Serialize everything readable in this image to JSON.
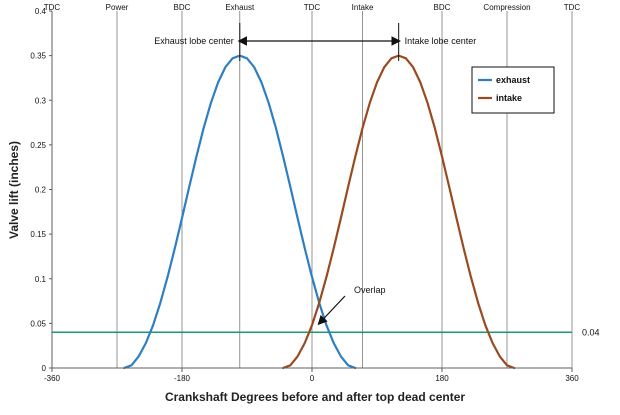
{
  "chart_data": {
    "type": "line",
    "xlabel": "Crankshaft Degrees before and after top dead center",
    "ylabel": "Valve lift (inches)",
    "xlim": [
      -360,
      360
    ],
    "ylim": [
      0,
      0.4
    ],
    "x_ticks": [
      -360,
      -180,
      0,
      180,
      360
    ],
    "x_tick_labels": [
      "-360",
      "-180",
      "0",
      "180",
      "360"
    ],
    "y_ticks": [
      0,
      0.05,
      0.1,
      0.15,
      0.2,
      0.25,
      0.3,
      0.35,
      0.4
    ],
    "y_tick_labels": [
      "0",
      "0.05",
      "0.1",
      "0.15",
      "0.2",
      "0.25",
      "0.3",
      "0.35",
      "0.4"
    ],
    "grid": "vertical",
    "top_phase_labels": [
      {
        "x": -360,
        "text": "TDC"
      },
      {
        "x": -270,
        "text": "Power"
      },
      {
        "x": -180,
        "text": "BDC"
      },
      {
        "x": -100,
        "text": "Exhaust"
      },
      {
        "x": 0,
        "text": "TDC"
      },
      {
        "x": 70,
        "text": "Intake"
      },
      {
        "x": 180,
        "text": "BDC"
      },
      {
        "x": 270,
        "text": "Compression"
      },
      {
        "x": 360,
        "text": "TDC"
      }
    ],
    "series": [
      {
        "name": "exhaust",
        "color": "#2e7fc2",
        "points": [
          [
            -260,
            0.0
          ],
          [
            -250,
            0.003
          ],
          [
            -240,
            0.013
          ],
          [
            -230,
            0.028
          ],
          [
            -220,
            0.048
          ],
          [
            -210,
            0.073
          ],
          [
            -200,
            0.102
          ],
          [
            -190,
            0.134
          ],
          [
            -180,
            0.168
          ],
          [
            -170,
            0.203
          ],
          [
            -160,
            0.237
          ],
          [
            -150,
            0.269
          ],
          [
            -140,
            0.297
          ],
          [
            -130,
            0.32
          ],
          [
            -120,
            0.337
          ],
          [
            -110,
            0.347
          ],
          [
            -100,
            0.35
          ],
          [
            -90,
            0.347
          ],
          [
            -80,
            0.337
          ],
          [
            -70,
            0.32
          ],
          [
            -60,
            0.297
          ],
          [
            -50,
            0.269
          ],
          [
            -40,
            0.237
          ],
          [
            -30,
            0.203
          ],
          [
            -20,
            0.168
          ],
          [
            -10,
            0.134
          ],
          [
            0,
            0.102
          ],
          [
            10,
            0.073
          ],
          [
            20,
            0.048
          ],
          [
            30,
            0.028
          ],
          [
            40,
            0.013
          ],
          [
            50,
            0.003
          ],
          [
            60,
            0.0
          ]
        ]
      },
      {
        "name": "intake",
        "color": "#9a4a20",
        "points": [
          [
            -40,
            0.0
          ],
          [
            -30,
            0.003
          ],
          [
            -20,
            0.013
          ],
          [
            -10,
            0.028
          ],
          [
            0,
            0.048
          ],
          [
            10,
            0.073
          ],
          [
            20,
            0.102
          ],
          [
            30,
            0.134
          ],
          [
            40,
            0.168
          ],
          [
            50,
            0.203
          ],
          [
            60,
            0.237
          ],
          [
            70,
            0.269
          ],
          [
            80,
            0.297
          ],
          [
            90,
            0.32
          ],
          [
            100,
            0.337
          ],
          [
            110,
            0.347
          ],
          [
            120,
            0.35
          ],
          [
            130,
            0.347
          ],
          [
            140,
            0.337
          ],
          [
            150,
            0.32
          ],
          [
            160,
            0.297
          ],
          [
            170,
            0.269
          ],
          [
            180,
            0.237
          ],
          [
            190,
            0.203
          ],
          [
            200,
            0.168
          ],
          [
            210,
            0.134
          ],
          [
            220,
            0.102
          ],
          [
            230,
            0.073
          ],
          [
            240,
            0.048
          ],
          [
            250,
            0.028
          ],
          [
            260,
            0.013
          ],
          [
            270,
            0.003
          ],
          [
            280,
            0.0
          ]
        ]
      }
    ],
    "reference_line": {
      "y": 0.04,
      "label": "0.04",
      "color": "#1a9a73"
    },
    "annotations": {
      "exhaust_lobe_center": {
        "text": "Exhaust lobe center",
        "x": -100
      },
      "intake_lobe_center": {
        "text": "Intake lobe center",
        "x": 120
      },
      "lobe_center_reference_x": 0,
      "overlap": {
        "text": "Overlap",
        "target_x": 10,
        "target_y": 0.05
      }
    },
    "legend": {
      "position": "top-right",
      "entries": [
        {
          "name": "exhaust",
          "color": "#2e7fc2"
        },
        {
          "name": "intake",
          "color": "#9a4a20"
        }
      ]
    }
  }
}
